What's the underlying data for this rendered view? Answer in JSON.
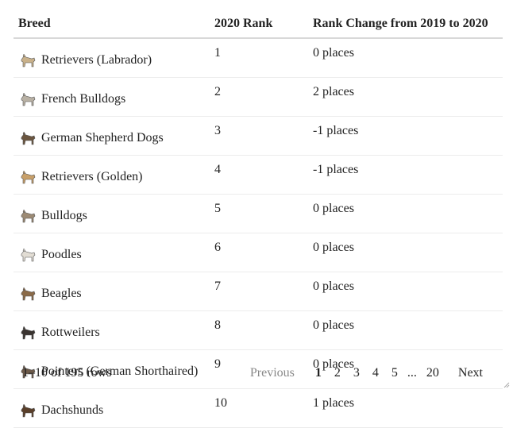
{
  "table": {
    "headers": [
      "Breed",
      "2020 Rank",
      "Rank Change from 2019 to 2020"
    ],
    "rows": [
      {
        "breed": "Retrievers (Labrador)",
        "rank": "1",
        "change": "0 places",
        "icon": "labrador-icon",
        "color": "#c9b18a"
      },
      {
        "breed": "French Bulldogs",
        "rank": "2",
        "change": "2 places",
        "icon": "french-bulldog-icon",
        "color": "#b9b1a4"
      },
      {
        "breed": "German Shepherd Dogs",
        "rank": "3",
        "change": "-1 places",
        "icon": "german-shepherd-icon",
        "color": "#6b5640"
      },
      {
        "breed": "Retrievers (Golden)",
        "rank": "4",
        "change": "-1 places",
        "icon": "golden-retriever-icon",
        "color": "#c8a06a"
      },
      {
        "breed": "Bulldogs",
        "rank": "5",
        "change": "0 places",
        "icon": "bulldog-icon",
        "color": "#9c8a74"
      },
      {
        "breed": "Poodles",
        "rank": "6",
        "change": "0 places",
        "icon": "poodle-icon",
        "color": "#e2ddd4"
      },
      {
        "breed": "Beagles",
        "rank": "7",
        "change": "0 places",
        "icon": "beagle-icon",
        "color": "#8a6a48"
      },
      {
        "breed": "Rottweilers",
        "rank": "8",
        "change": "0 places",
        "icon": "rottweiler-icon",
        "color": "#3a3430"
      },
      {
        "breed": "Pointers (German Shorthaired)",
        "rank": "9",
        "change": "0 places",
        "icon": "pointer-icon",
        "color": "#6d5a4a"
      },
      {
        "breed": "Dachshunds",
        "rank": "10",
        "change": "1 places",
        "icon": "dachshund-icon",
        "color": "#5a3f2a"
      }
    ]
  },
  "footer": {
    "info": "1–10 of 195 rows",
    "previous": "Previous",
    "pages": [
      "1",
      "2",
      "3",
      "4",
      "5"
    ],
    "ellipsis": "...",
    "last_page": "20",
    "next": "Next",
    "current_page": "1"
  }
}
